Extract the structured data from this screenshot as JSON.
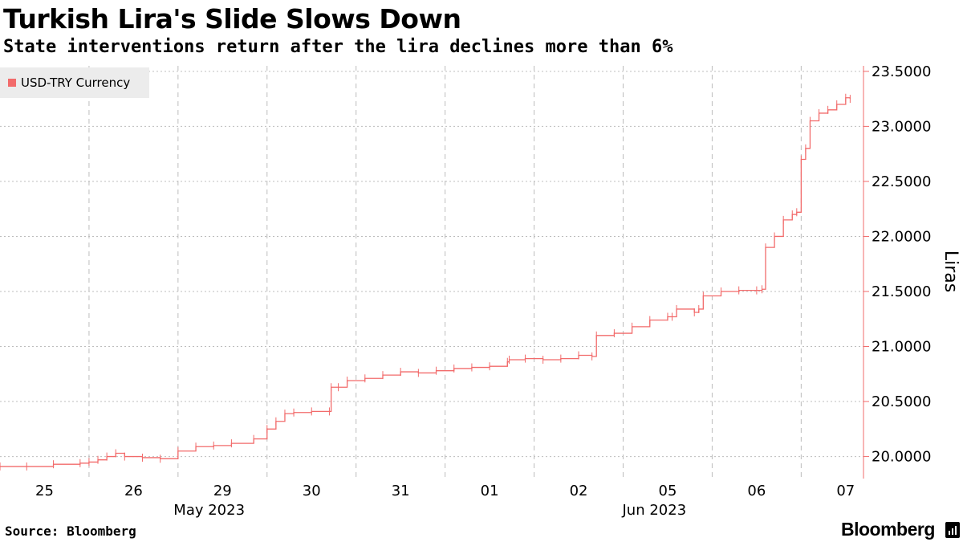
{
  "title": "Turkish Lira's Slide Slows Down",
  "subtitle": "State interventions return after the lira declines more than 6%",
  "source": "Source: Bloomberg",
  "brand": "Bloomberg",
  "colors": {
    "series": "#f26b6b",
    "grid": "#bdbdbd",
    "axis": "#f26b6b"
  },
  "chart_data": {
    "type": "line",
    "title": "Turkish Lira's Slide Slows Down",
    "subtitle": "State interventions return after the lira declines more than 6%",
    "legend": [
      "USD-TRY Currency"
    ],
    "legend_position": "top-left",
    "ylabel": "Liras",
    "ylim": [
      19.8,
      23.55
    ],
    "yticks": [
      20.0,
      20.5,
      21.0,
      21.5,
      22.0,
      22.5,
      23.0,
      23.5
    ],
    "ytick_labels": [
      "20.0000",
      "20.5000",
      "21.0000",
      "21.5000",
      "22.0000",
      "22.5000",
      "23.0000",
      "23.5000"
    ],
    "xlim": [
      0,
      9.7
    ],
    "x_categories": [
      "25",
      "26",
      "29",
      "30",
      "31",
      "01",
      "02",
      "05",
      "06",
      "07"
    ],
    "x_month_labels": [
      {
        "label": "May 2023",
        "at": 2.0
      },
      {
        "label": "Jun 2023",
        "at": 7.0
      }
    ],
    "grid": true,
    "series": [
      {
        "name": "USD-TRY Currency",
        "x": [
          0.0,
          0.3,
          0.6,
          0.9,
          1.0,
          1.1,
          1.2,
          1.3,
          1.4,
          1.6,
          1.8,
          2.0,
          2.2,
          2.4,
          2.6,
          2.85,
          3.0,
          3.1,
          3.2,
          3.3,
          3.5,
          3.7,
          3.72,
          3.8,
          3.9,
          4.1,
          4.3,
          4.5,
          4.7,
          4.9,
          5.1,
          5.3,
          5.5,
          5.7,
          5.72,
          5.9,
          6.1,
          6.3,
          6.5,
          6.65,
          6.7,
          6.9,
          7.1,
          7.3,
          7.5,
          7.55,
          7.6,
          7.8,
          7.85,
          7.9,
          8.1,
          8.3,
          8.5,
          8.56,
          8.6,
          8.7,
          8.8,
          8.9,
          8.95,
          9.0,
          9.05,
          9.1,
          9.2,
          9.3,
          9.4,
          9.5,
          9.55
        ],
        "y": [
          19.91,
          19.91,
          19.93,
          19.94,
          19.95,
          19.97,
          20.0,
          20.03,
          20.0,
          19.99,
          19.98,
          20.05,
          20.09,
          20.1,
          20.12,
          20.16,
          20.25,
          20.32,
          20.39,
          20.4,
          20.41,
          20.41,
          20.63,
          20.63,
          20.69,
          20.71,
          20.74,
          20.77,
          20.76,
          20.78,
          20.8,
          20.81,
          20.82,
          20.86,
          20.88,
          20.89,
          20.88,
          20.89,
          20.92,
          20.91,
          21.1,
          21.12,
          21.18,
          21.24,
          21.27,
          21.27,
          21.34,
          21.31,
          21.34,
          21.46,
          21.5,
          21.51,
          21.51,
          21.52,
          21.9,
          22.0,
          22.15,
          22.2,
          22.22,
          22.7,
          22.8,
          23.05,
          23.12,
          23.15,
          23.2,
          23.26,
          23.25
        ]
      }
    ]
  }
}
